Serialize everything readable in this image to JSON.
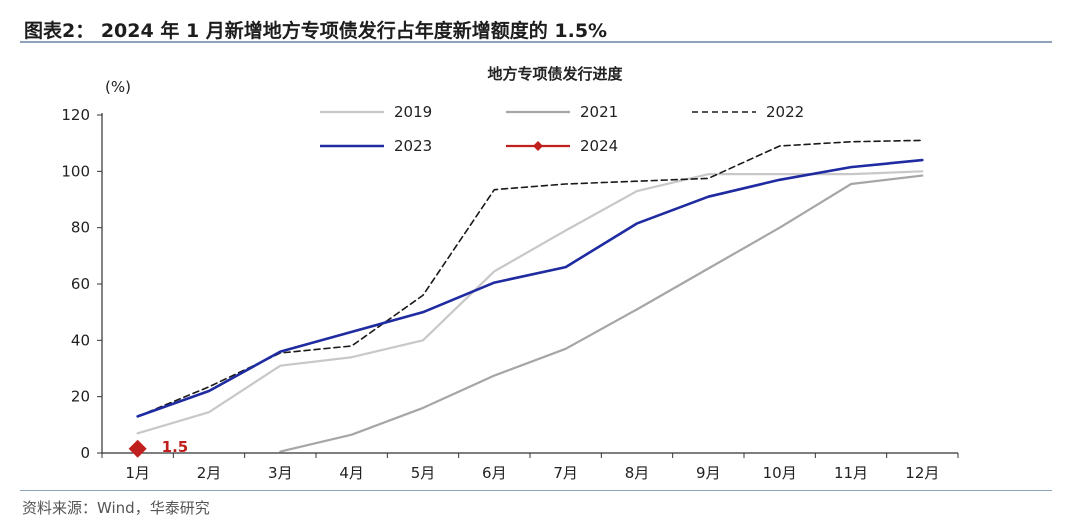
{
  "figure": {
    "title": "图表2： 2024 年 1 月新增地方专项债发行占年度新增额度的 1.5%",
    "source": "资料来源：Wind，华泰研究"
  },
  "chart_data": {
    "type": "line",
    "title": "地方专项债发行进度",
    "ylabel": "(%)",
    "xlabel": "",
    "ylim": [
      0,
      120
    ],
    "yticks": [
      0,
      20,
      40,
      60,
      80,
      100,
      120
    ],
    "grid": false,
    "legend_position": "top-center",
    "categories": [
      "1月",
      "2月",
      "3月",
      "4月",
      "5月",
      "6月",
      "7月",
      "8月",
      "9月",
      "10月",
      "11月",
      "12月"
    ],
    "series": [
      {
        "name": "2019",
        "color": "#c8c8c8",
        "dash": "solid",
        "values": [
          7,
          14.5,
          31,
          34,
          40,
          64.5,
          79,
          93,
          99,
          99,
          99,
          100
        ]
      },
      {
        "name": "2021",
        "color": "#a6a6a6",
        "dash": "solid",
        "values": [
          null,
          null,
          0.5,
          6.5,
          16,
          27.5,
          37,
          51,
          65.5,
          80,
          95.5,
          98.5
        ]
      },
      {
        "name": "2022",
        "color": "#1a1a1a",
        "dash": "dashed",
        "values": [
          13,
          23.5,
          35.5,
          38,
          56,
          93.5,
          95.5,
          96.5,
          97.5,
          109,
          110.5,
          111
        ]
      },
      {
        "name": "2023",
        "color": "#1f2ba0",
        "dash": "solid",
        "values": [
          13,
          22,
          36,
          43,
          50,
          60.5,
          66,
          81.5,
          91,
          97,
          101.5,
          104
        ]
      },
      {
        "name": "2024",
        "color": "#c0201d",
        "dash": "solid",
        "marker": "diamond",
        "values": [
          1.5,
          null,
          null,
          null,
          null,
          null,
          null,
          null,
          null,
          null,
          null,
          null
        ]
      }
    ],
    "annotations": [
      {
        "series": "2024",
        "category": "1月",
        "text": "1.5",
        "color": "#c0201d"
      }
    ]
  }
}
